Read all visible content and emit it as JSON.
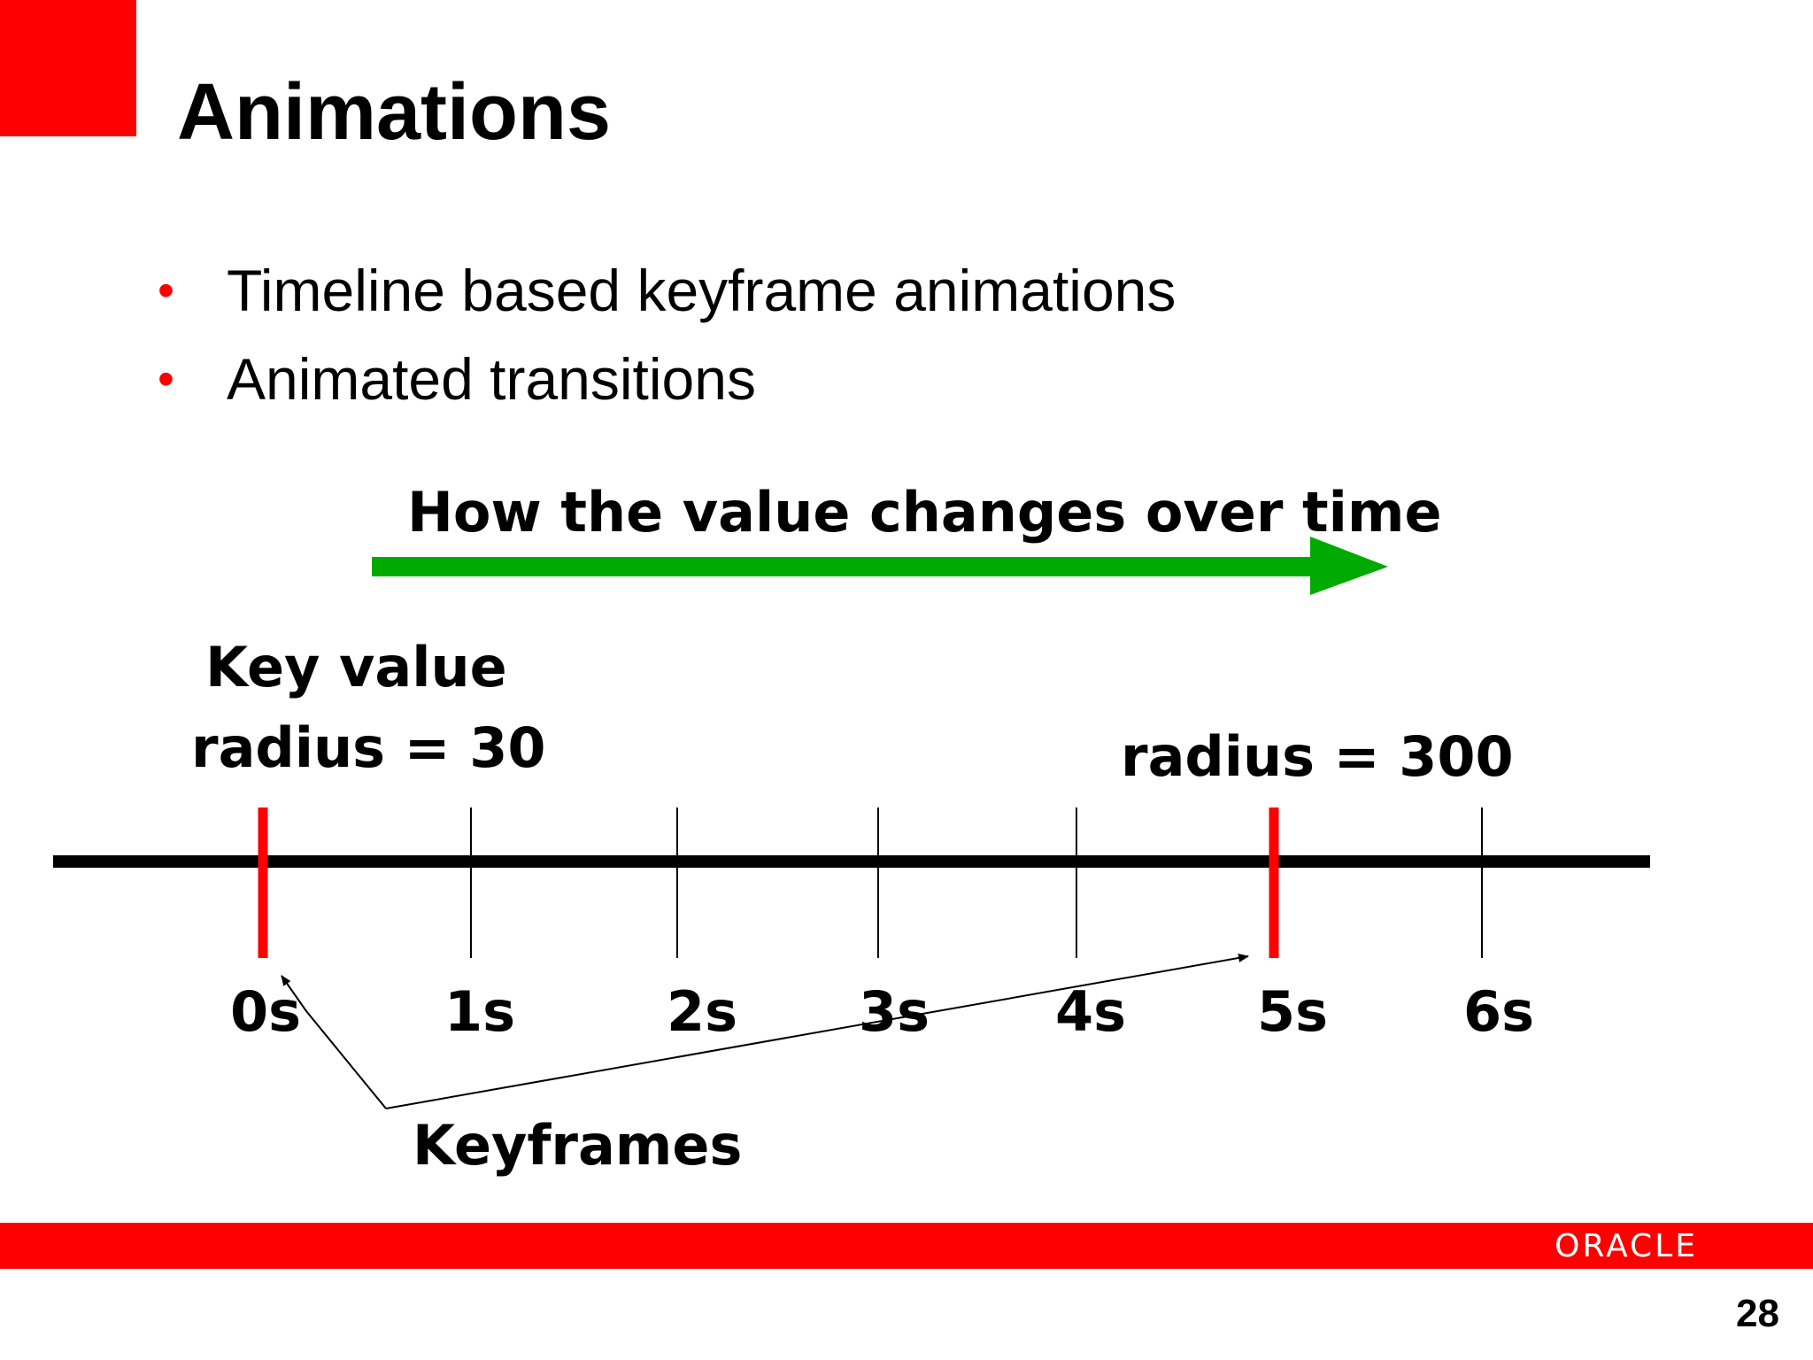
{
  "slide": {
    "title": "Animations",
    "bullets": [
      "Timeline based keyframe animations",
      "Animated transitions"
    ],
    "page_number": "28",
    "logo_text": "ORACLE",
    "accent_color": "#ff0000"
  },
  "diagram": {
    "title": "How the value changes over time",
    "arrow_color": "#00aa00",
    "key_value_label": "Key value",
    "start_value_label": "radius = 30",
    "end_value_label": "radius = 300",
    "keyframes_label": "Keyframes",
    "ticks": [
      "0s",
      "1s",
      "2s",
      "3s",
      "4s",
      "5s",
      "6s"
    ],
    "keyframe_times": [
      "0s",
      "5s"
    ],
    "keyframe_color": "#ff0000"
  }
}
